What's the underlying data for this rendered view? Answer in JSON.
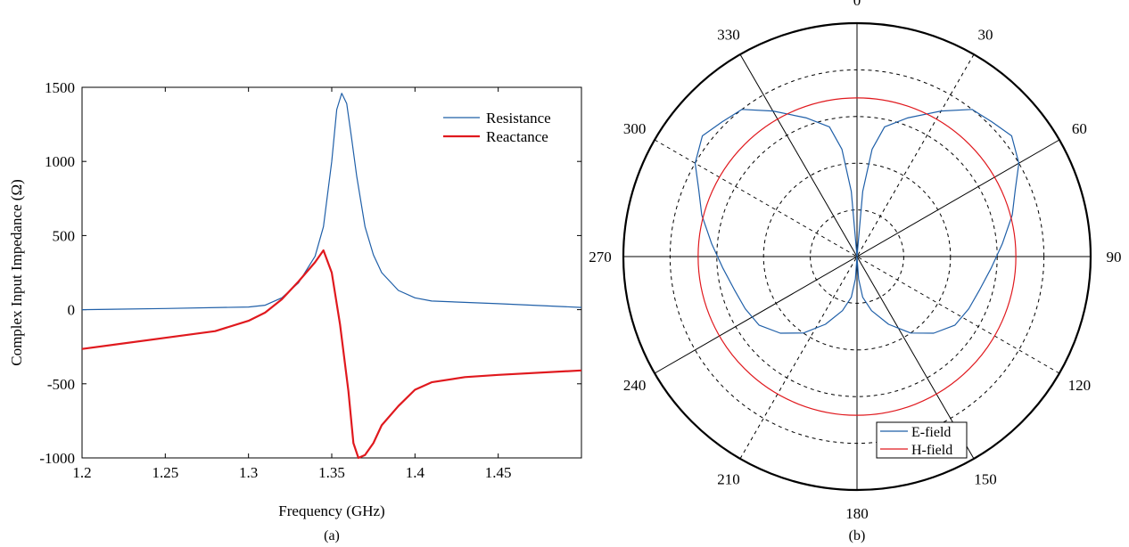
{
  "chart_data": [
    {
      "type": "line",
      "panel_label": "(a)",
      "xlabel": "Frequency (GHz)",
      "ylabel": "Complex Input Impedance (Ω)",
      "xlim": [
        1.2,
        1.5
      ],
      "ylim": [
        -1000,
        1500
      ],
      "xticks": [
        1.2,
        1.25,
        1.3,
        1.35,
        1.4,
        1.45
      ],
      "xtick_labels": [
        "1.2",
        "1.25",
        "1.3",
        "1.35",
        "1.4",
        "1.45"
      ],
      "yticks": [
        -1000,
        -500,
        0,
        500,
        1000,
        1500
      ],
      "ytick_labels": [
        "-1000",
        "-500",
        "0",
        "500",
        "1000",
        "1500"
      ],
      "grid": false,
      "legend_position": "top-right",
      "series": [
        {
          "name": "Resistance",
          "color": "#1f5fa8",
          "stroke_width": 1.2,
          "x": [
            1.2,
            1.25,
            1.3,
            1.31,
            1.32,
            1.33,
            1.34,
            1.345,
            1.35,
            1.353,
            1.356,
            1.359,
            1.362,
            1.365,
            1.37,
            1.375,
            1.38,
            1.39,
            1.4,
            1.41,
            1.45,
            1.5
          ],
          "y": [
            0,
            8,
            18,
            30,
            80,
            180,
            360,
            560,
            1000,
            1350,
            1460,
            1390,
            1150,
            900,
            560,
            370,
            250,
            130,
            80,
            58,
            40,
            15
          ]
        },
        {
          "name": "Reactance",
          "color": "#e0191e",
          "stroke_width": 2.2,
          "x": [
            1.2,
            1.25,
            1.28,
            1.3,
            1.31,
            1.32,
            1.33,
            1.34,
            1.345,
            1.35,
            1.355,
            1.36,
            1.363,
            1.366,
            1.37,
            1.375,
            1.38,
            1.39,
            1.4,
            1.41,
            1.43,
            1.45,
            1.5
          ],
          "y": [
            -265,
            -190,
            -145,
            -75,
            -20,
            70,
            190,
            320,
            400,
            250,
            -100,
            -550,
            -900,
            -1000,
            -980,
            -900,
            -780,
            -650,
            -540,
            -490,
            -455,
            -440,
            -410
          ]
        }
      ]
    },
    {
      "type": "polar",
      "panel_label": "(b)",
      "angle_labels": [
        "0",
        "30",
        "60",
        "90",
        "120",
        "150",
        "180",
        "210",
        "240",
        "270",
        "300",
        "330"
      ],
      "legend_position": "bottom-right",
      "series": [
        {
          "name": "E-field",
          "color": "#1f5fa8",
          "angles_deg": [
            0,
            5,
            8,
            12,
            20,
            30,
            38,
            45,
            52,
            60,
            67,
            75,
            85,
            95,
            105,
            115,
            125,
            135,
            145,
            155,
            165,
            172,
            176,
            180
          ],
          "values": [
            0,
            0.35,
            0.58,
            0.71,
            0.79,
            0.9,
            1.0,
            1.02,
            1.05,
            1.0,
            0.92,
            0.86,
            0.78,
            0.72,
            0.68,
            0.66,
            0.64,
            0.58,
            0.5,
            0.4,
            0.3,
            0.22,
            0.12,
            0
          ],
          "mirrored": true
        },
        {
          "name": "H-field",
          "color": "#e0191e",
          "angles_deg": [
            0,
            90,
            180,
            270
          ],
          "values": [
            0.68,
            0.68,
            0.68,
            0.68
          ]
        }
      ]
    }
  ]
}
